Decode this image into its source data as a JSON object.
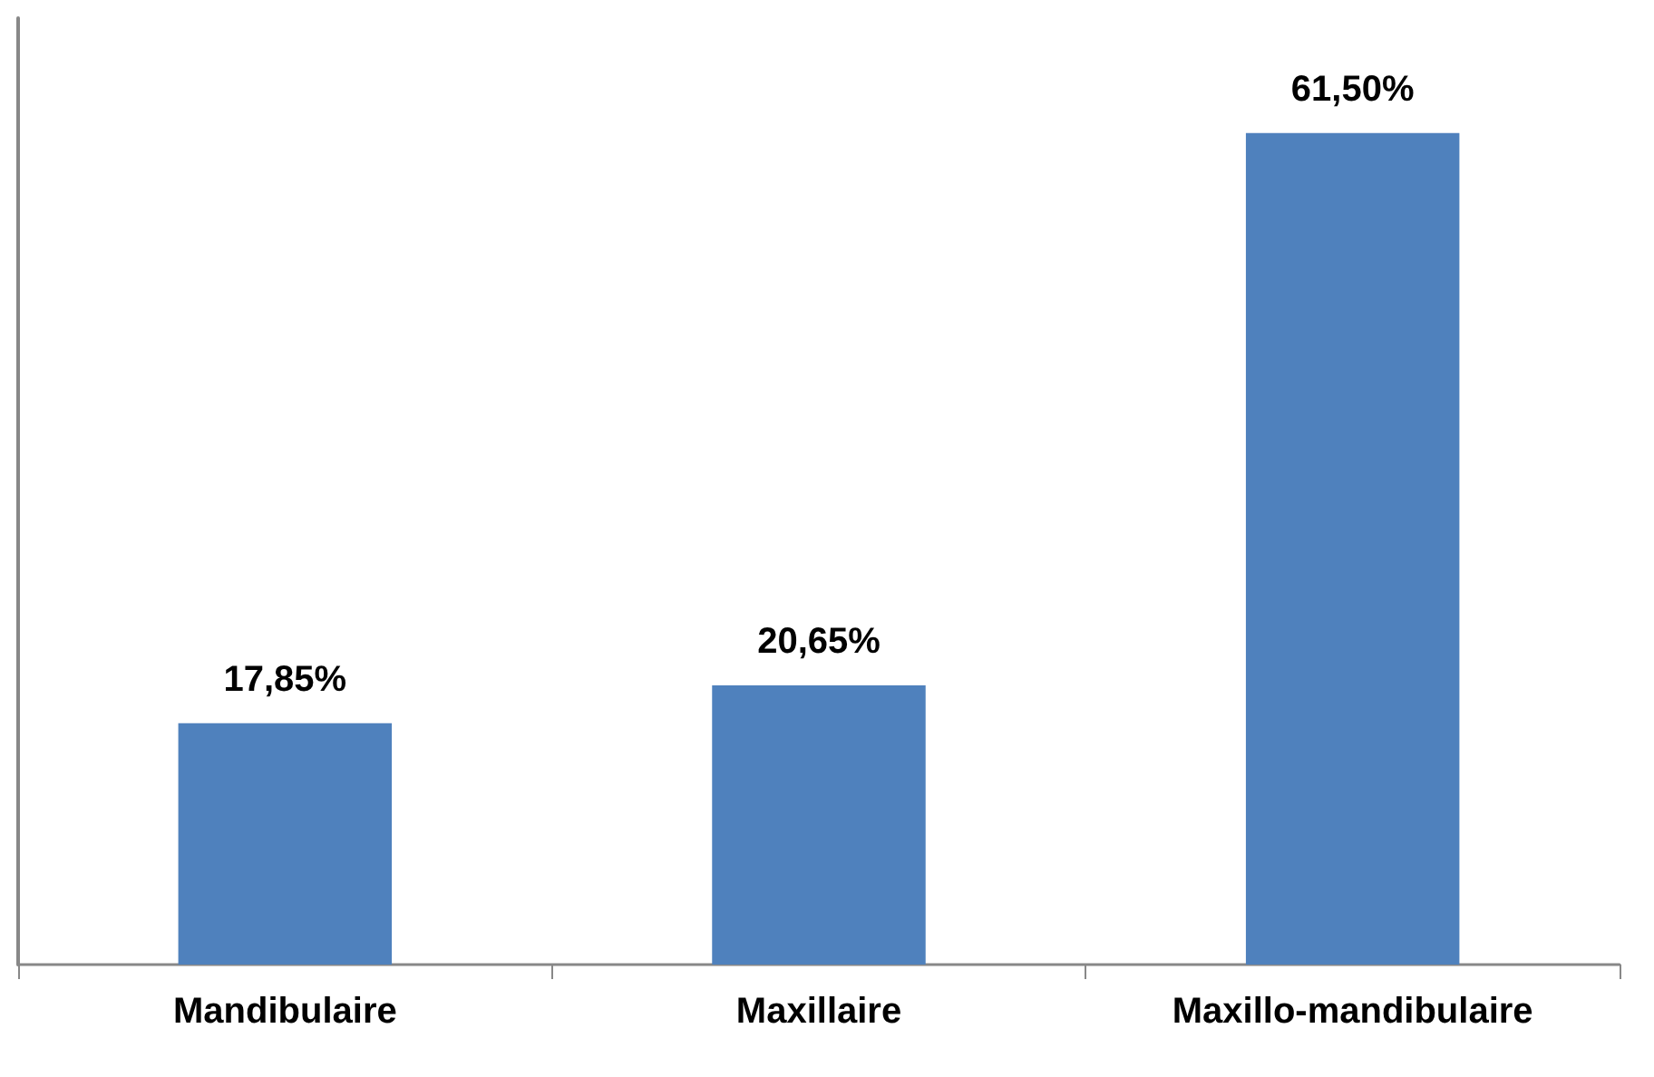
{
  "chart_data": {
    "type": "bar",
    "categories": [
      "Mandibulaire",
      "Maxillaire",
      "Maxillo-mandibulaire"
    ],
    "values": [
      17.85,
      20.65,
      61.5
    ],
    "value_labels": [
      "17,85%",
      "20,65%",
      "61,50%"
    ],
    "color": "#4f81bd",
    "tick_labels": "x"
  }
}
